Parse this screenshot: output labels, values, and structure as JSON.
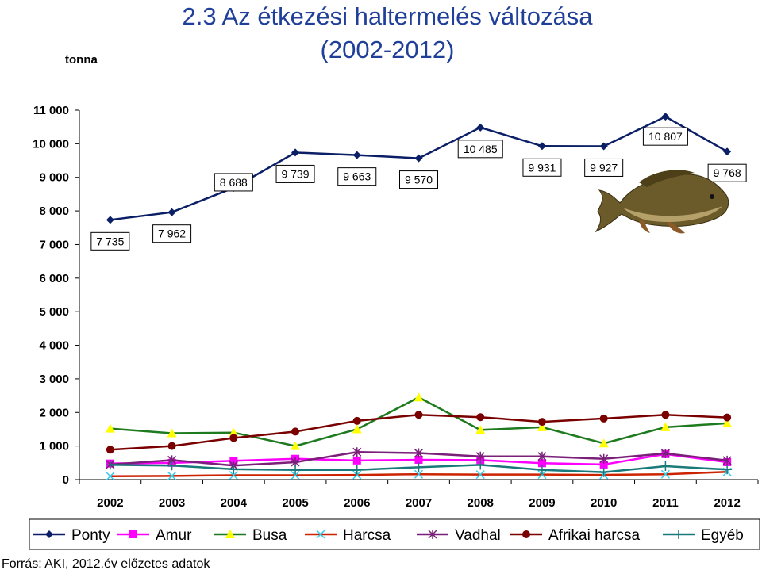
{
  "chart_data": {
    "type": "line",
    "title": "2.3 Az étkezési haltermelés változása",
    "subtitle": "(2002-2012)",
    "ylabel": "tonna",
    "ylim": [
      0,
      11000
    ],
    "yticks": [
      "0",
      "1 000",
      "2 000",
      "3 000",
      "4 000",
      "5 000",
      "6 000",
      "7 000",
      "8 000",
      "9 000",
      "10 000",
      "11 000"
    ],
    "categories": [
      "2002",
      "2003",
      "2004",
      "2005",
      "2006",
      "2007",
      "2008",
      "2009",
      "2010",
      "2011",
      "2012"
    ],
    "grid": false,
    "legend_position": "bottom",
    "series": [
      {
        "name": "Ponty",
        "color": "#0b1f66",
        "marker": "diamond",
        "values": [
          7735,
          7962,
          8688,
          9739,
          9663,
          9570,
          10485,
          9931,
          9927,
          10807,
          9768
        ],
        "labels": [
          "7 735",
          "7 962",
          "8 688",
          "9 739",
          "9 663",
          "9 570",
          "10 485",
          "9 931",
          "9 927",
          "10 807",
          "9 768"
        ]
      },
      {
        "name": "Amur",
        "color": "#ff00ff",
        "marker": "square",
        "values": [
          480,
          500,
          560,
          620,
          570,
          590,
          580,
          490,
          450,
          760,
          520
        ]
      },
      {
        "name": "Busa",
        "color": "#1e7a1e",
        "marker": "triangle",
        "marker_color": "#ffff00",
        "values": [
          1520,
          1380,
          1400,
          1000,
          1500,
          2450,
          1480,
          1560,
          1080,
          1560,
          1680
        ]
      },
      {
        "name": "Harcsa",
        "color": "#cc2200",
        "marker": "x",
        "marker_color": "#33ccee",
        "values": [
          100,
          110,
          130,
          130,
          140,
          160,
          150,
          150,
          140,
          160,
          230
        ]
      },
      {
        "name": "Vadhal",
        "color": "#7a1f7a",
        "marker": "star",
        "values": [
          450,
          580,
          420,
          520,
          820,
          790,
          690,
          690,
          620,
          780,
          570
        ]
      },
      {
        "name": "Afrikai harcsa",
        "color": "#7a0000",
        "marker": "circle",
        "values": [
          890,
          1000,
          1240,
          1430,
          1750,
          1930,
          1860,
          1720,
          1820,
          1930,
          1850
        ]
      },
      {
        "name": "Egyéb",
        "color": "#1a7a7a",
        "marker": "plus",
        "values": [
          440,
          420,
          310,
          290,
          290,
          370,
          440,
          290,
          220,
          400,
          300
        ]
      }
    ]
  },
  "source_note": "Forrás: AKI, 2012.év előzetes adatok",
  "fish_icon": "carp-fish-icon"
}
